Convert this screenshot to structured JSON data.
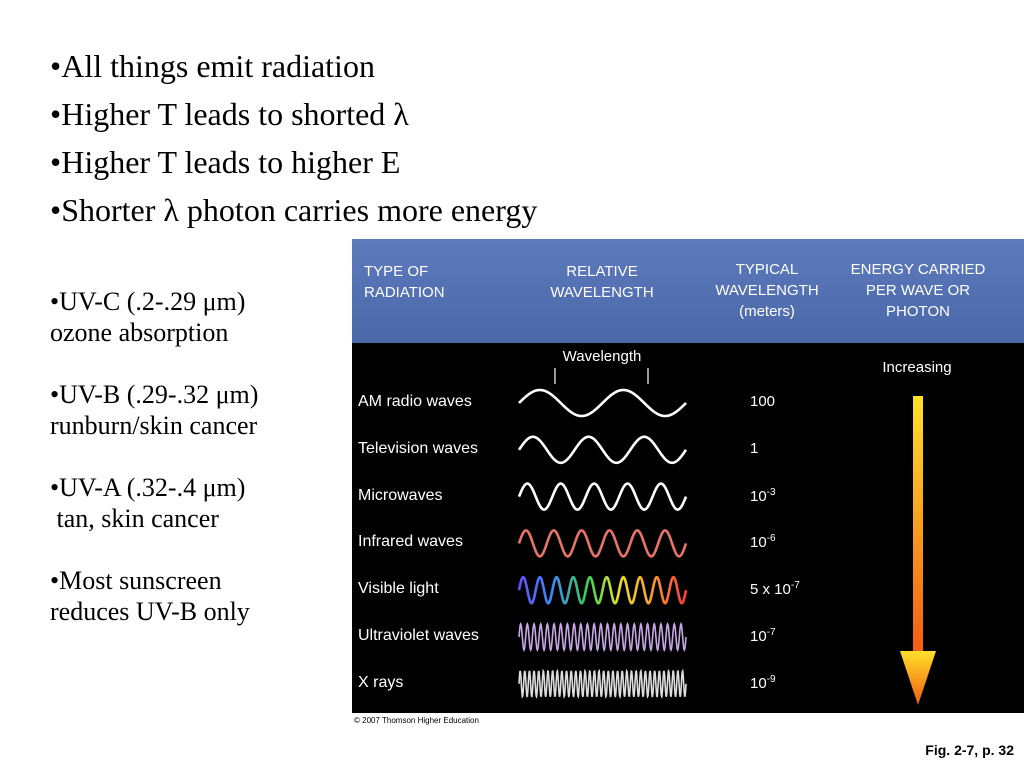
{
  "bullets": [
    "•All things emit radiation",
    "•Higher T leads to shorted λ",
    "•Higher T leads to higher E",
    "•Shorter λ photon carries more energy"
  ],
  "side_notes": [
    {
      "line1": "•UV-C (.2-.29 μm)",
      "line2": "ozone absorption"
    },
    {
      "line1": "•UV-B (.29-.32 μm)",
      "line2": "runburn/skin cancer"
    },
    {
      "line1": "•UV-A (.32-.4 μm)",
      "line2": " tan, skin cancer"
    },
    {
      "line1": "•Most sunscreen",
      "line2": "reduces UV-B only"
    }
  ],
  "figure": {
    "headers": {
      "type_line1": "TYPE OF",
      "type_line2": "RADIATION",
      "relative_line1": "RELATIVE",
      "relative_line2": "WAVELENGTH",
      "typical_line1": "TYPICAL",
      "typical_line2": "WAVELENGTH",
      "typical_units": "(meters)",
      "energy_line1": "ENERGY CARRIED",
      "energy_line2": "PER WAVE OR",
      "energy_line3": "PHOTON"
    },
    "wavelength_label": "Wavelength",
    "increasing_label": "Increasing",
    "rows": [
      {
        "name": "AM radio waves",
        "value_base": "100",
        "value_exp": "",
        "color": "#ffffff"
      },
      {
        "name": "Television waves",
        "value_base": "1",
        "value_exp": "",
        "color": "#ffffff"
      },
      {
        "name": "Microwaves",
        "value_base": "10",
        "value_exp": "-3",
        "color": "#ffffff"
      },
      {
        "name": "Infrared waves",
        "value_base": "10",
        "value_exp": "-6",
        "color": "#e8736a"
      },
      {
        "name": "Visible light",
        "value_base": "5 x 10",
        "value_exp": "-7",
        "color": "rainbow"
      },
      {
        "name": "Ultraviolet waves",
        "value_base": "10",
        "value_exp": "-7",
        "color": "#c9a6e8"
      },
      {
        "name": "X rays",
        "value_base": "10",
        "value_exp": "-9",
        "color": "#dddddd"
      }
    ],
    "copyright": "© 2007 Thomson Higher Education",
    "arrow_colors": {
      "top": "#ffe02a",
      "bottom": "#f25c12"
    }
  },
  "fig_ref": "Fig. 2-7, p. 32"
}
